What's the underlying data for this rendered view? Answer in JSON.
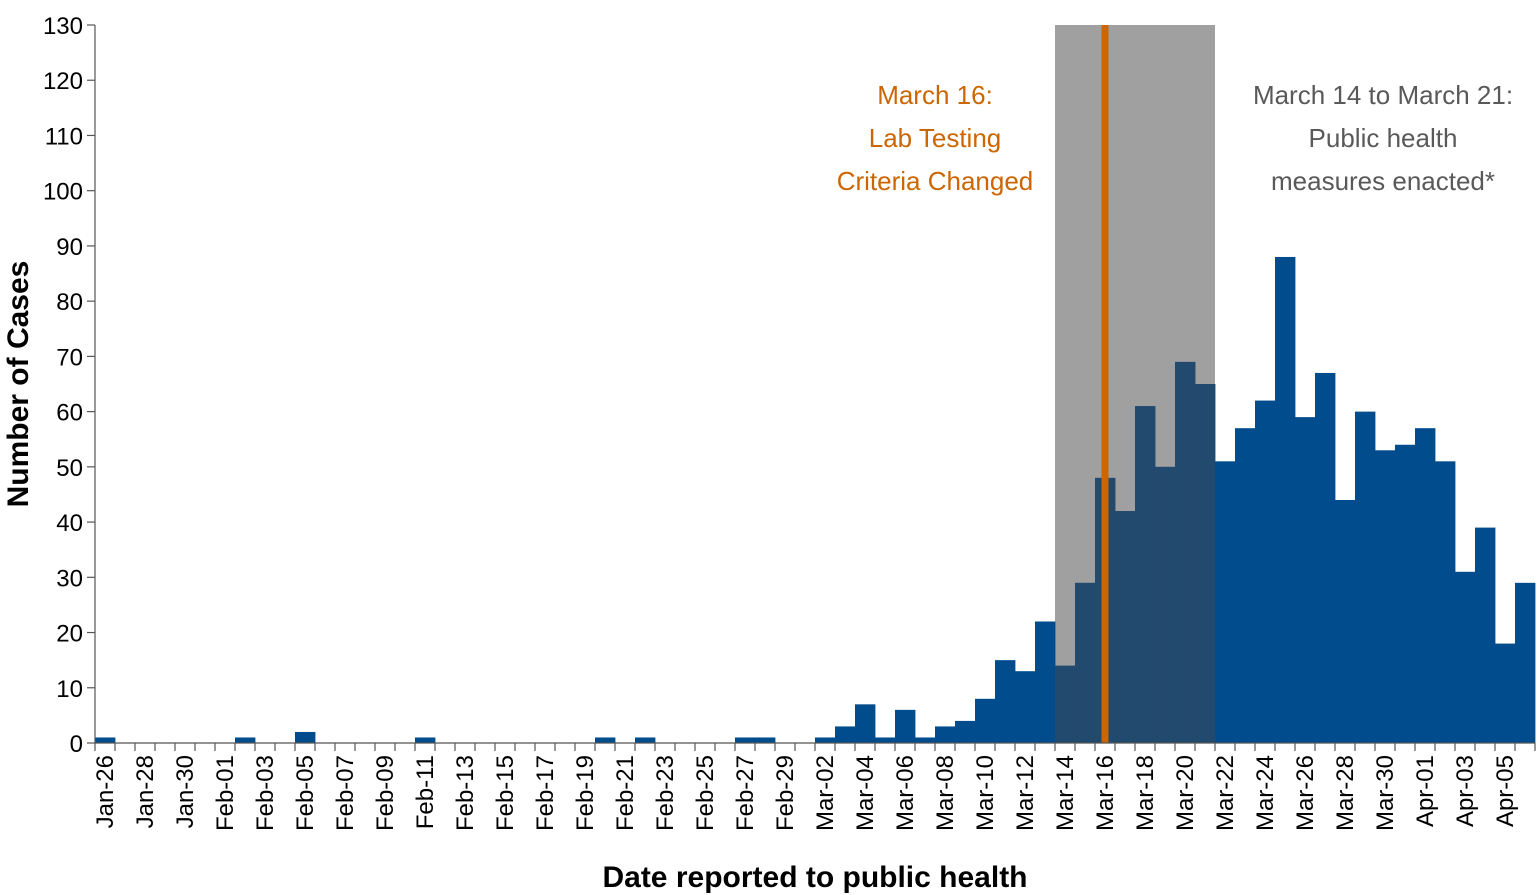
{
  "chart_data": {
    "type": "bar",
    "xlabel": "Date reported to public health",
    "ylabel": "Number of Cases",
    "ylim": [
      0,
      130
    ],
    "yticks": [
      0,
      10,
      20,
      30,
      40,
      50,
      60,
      70,
      80,
      90,
      100,
      110,
      120,
      130
    ],
    "grid": false,
    "bar_color": "#004c8c",
    "categories": [
      "Jan-26",
      "Jan-27",
      "Jan-28",
      "Jan-29",
      "Jan-30",
      "Jan-31",
      "Feb-01",
      "Feb-02",
      "Feb-03",
      "Feb-04",
      "Feb-05",
      "Feb-06",
      "Feb-07",
      "Feb-08",
      "Feb-09",
      "Feb-10",
      "Feb-11",
      "Feb-12",
      "Feb-13",
      "Feb-14",
      "Feb-15",
      "Feb-16",
      "Feb-17",
      "Feb-18",
      "Feb-19",
      "Feb-20",
      "Feb-21",
      "Feb-22",
      "Feb-23",
      "Feb-24",
      "Feb-25",
      "Feb-26",
      "Feb-27",
      "Feb-28",
      "Feb-29",
      "Mar-01",
      "Mar-02",
      "Mar-03",
      "Mar-04",
      "Mar-05",
      "Mar-06",
      "Mar-07",
      "Mar-08",
      "Mar-09",
      "Mar-10",
      "Mar-11",
      "Mar-12",
      "Mar-13",
      "Mar-14",
      "Mar-15",
      "Mar-16",
      "Mar-17",
      "Mar-18",
      "Mar-19",
      "Mar-20",
      "Mar-21",
      "Mar-22",
      "Mar-23",
      "Mar-24",
      "Mar-25",
      "Mar-26",
      "Mar-27",
      "Mar-28",
      "Mar-29",
      "Mar-30",
      "Mar-31",
      "Apr-01",
      "Apr-02",
      "Apr-03",
      "Apr-04",
      "Apr-05",
      "Apr-06"
    ],
    "tick_labels": [
      "Jan-26",
      "Jan-28",
      "Jan-30",
      "Feb-01",
      "Feb-03",
      "Feb-05",
      "Feb-07",
      "Feb-09",
      "Feb-11",
      "Feb-13",
      "Feb-15",
      "Feb-17",
      "Feb-19",
      "Feb-21",
      "Feb-23",
      "Feb-25",
      "Feb-27",
      "Feb-29",
      "Mar-02",
      "Mar-04",
      "Mar-06",
      "Mar-08",
      "Mar-10",
      "Mar-12",
      "Mar-14",
      "Mar-16",
      "Mar-18",
      "Mar-20",
      "Mar-22",
      "Mar-24",
      "Mar-26",
      "Mar-28",
      "Mar-30",
      "Apr-01",
      "Apr-03",
      "Apr-05"
    ],
    "values": [
      1,
      0,
      0,
      0,
      0,
      0,
      0,
      1,
      0,
      0,
      2,
      0,
      0,
      0,
      0,
      0,
      1,
      0,
      0,
      0,
      0,
      0,
      0,
      0,
      0,
      1,
      0,
      1,
      0,
      0,
      0,
      0,
      1,
      1,
      0,
      0,
      1,
      3,
      7,
      1,
      6,
      1,
      3,
      4,
      8,
      15,
      13,
      22,
      14,
      29,
      48,
      42,
      61,
      50,
      69,
      65,
      51,
      57,
      62,
      88,
      59,
      67,
      44,
      60,
      53,
      54,
      57,
      51,
      31,
      39,
      18,
      29
    ],
    "annotations": {
      "shaded_period": {
        "from": "Mar-14",
        "to": "Mar-21",
        "color": "#a0a0a0",
        "label_lines": [
          "March 14 to March 21:",
          "Public health",
          "measures enacted*"
        ],
        "label_color": "#595959"
      },
      "vertical_line": {
        "at": "Mar-16",
        "color": "#cc6600",
        "label_lines": [
          "March 16:",
          "Lab Testing",
          "Criteria Changed"
        ]
      }
    }
  }
}
